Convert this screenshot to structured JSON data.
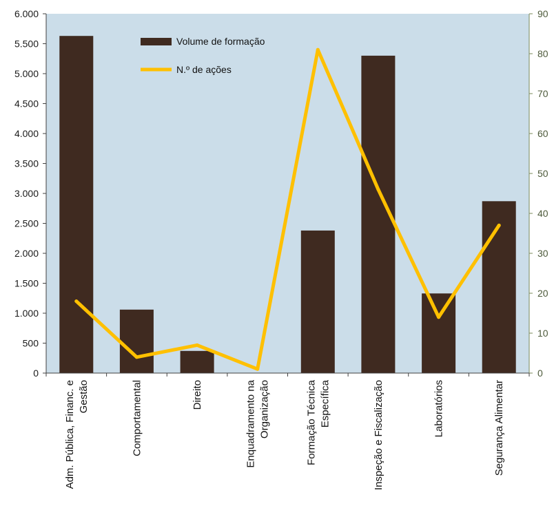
{
  "chart_data": {
    "type": "bar",
    "categories": [
      [
        "Adm. Pública, Financ. e",
        "Gestão"
      ],
      [
        "Comportamental"
      ],
      [
        "Direito"
      ],
      [
        "Enquadramento na",
        "Organização"
      ],
      [
        "Formação Técnica",
        "Específica"
      ],
      [
        "Inspeção e Fiscalização"
      ],
      [
        "Laboratórios"
      ],
      [
        "Segurança Alimentar"
      ]
    ],
    "series": [
      {
        "name": "Volume de formação",
        "type": "bar",
        "axis": "left",
        "color": "#3f2a20",
        "values": [
          5630,
          1060,
          370,
          0,
          2380,
          5300,
          1330,
          2870
        ]
      },
      {
        "name": "N.º de ações",
        "type": "line",
        "axis": "right",
        "color": "#ffc000",
        "values": [
          18,
          4,
          7,
          1,
          81,
          46,
          14,
          37
        ]
      }
    ],
    "y_left": {
      "ylim": [
        0,
        6000
      ],
      "ticks": [
        0,
        500,
        1000,
        1500,
        2000,
        2500,
        3000,
        3500,
        4000,
        4500,
        5000,
        5500,
        6000
      ],
      "tick_labels": [
        "0",
        "500",
        "1.000",
        "1.500",
        "2.000",
        "2.500",
        "3.000",
        "3.500",
        "4.000",
        "4.500",
        "5.000",
        "5.500",
        "6.000"
      ]
    },
    "y_right": {
      "ylim": [
        0,
        90
      ],
      "ticks": [
        0,
        10,
        20,
        30,
        40,
        50,
        60,
        70,
        80,
        90
      ],
      "tick_labels": [
        "0",
        "10",
        "20",
        "30",
        "40",
        "50",
        "60",
        "70",
        "80",
        "90"
      ]
    },
    "legend": {
      "placement": "top-left inside plot"
    },
    "grid": false,
    "plot_background": "#cbdde9"
  }
}
